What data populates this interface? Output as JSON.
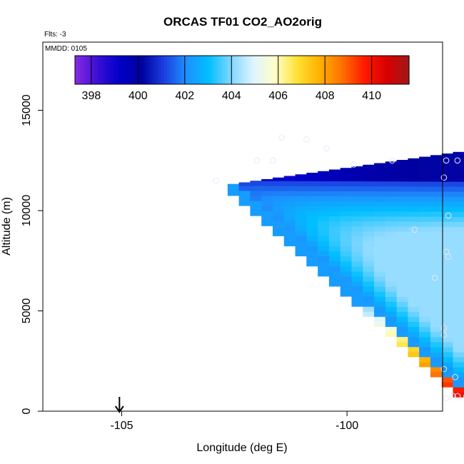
{
  "chart_data": {
    "type": "heatmap",
    "title": "ORCAS TF01 CO2_AO2orig",
    "flights_label": "Flts: -3",
    "date_label": "MMDD: 0105",
    "xlabel": "Longitude (deg E)",
    "ylabel": "Altitude (m)",
    "xlim": [
      -106.75,
      -97.88
    ],
    "ylim": [
      0,
      18400
    ],
    "x_ticks": [
      -105,
      -100
    ],
    "x_tick_labels": [
      "-105",
      "-100"
    ],
    "y_ticks": [
      0,
      5000,
      10000,
      15000
    ],
    "y_tick_labels": [
      "0",
      "5000",
      "10000",
      "15000"
    ],
    "colorbar": {
      "min": 397.3,
      "max": 411.6,
      "ticks": [
        398,
        400,
        402,
        404,
        406,
        408,
        410
      ],
      "tick_labels": [
        "398",
        "400",
        "402",
        "404",
        "406",
        "408",
        "410"
      ],
      "colors": [
        "#8a2be2",
        "#3b0fd6",
        "#0000c8",
        "#0000a0",
        "#1b3fe0",
        "#1e90ff",
        "#00bfff",
        "#7fd6ff",
        "#dff4ff",
        "#ffffc8",
        "#ffe033",
        "#ffb000",
        "#ff7000",
        "#ff1a00",
        "#d80000",
        "#a01818"
      ]
    },
    "field_cells": {
      "x_step": 0.25,
      "z_step": 250,
      "vertices": [
        [
          -102.9,
          11250
        ],
        [
          -98.2,
          12750
        ],
        [
          -97.6,
          600
        ]
      ],
      "lower_edge": [
        [
          -100.0,
          5000
        ],
        [
          -97.6,
          600
        ]
      ],
      "top_values": [
        [
          -102.9,
          400.4
        ],
        [
          -101.5,
          399.0
        ],
        [
          -100.0,
          399.8
        ],
        [
          -98.5,
          400.2
        ]
      ],
      "core_value": 404.2,
      "surface_max": 411.0
    },
    "sample_points": [
      [
        -101.45,
        13650
      ],
      [
        -100.9,
        13550
      ],
      [
        -100.45,
        13100
      ],
      [
        -102.0,
        12500
      ],
      [
        -101.65,
        12500
      ],
      [
        -99.0,
        12500
      ],
      [
        -97.8,
        12500
      ],
      [
        -97.55,
        12500
      ],
      [
        -99.85,
        12300
      ],
      [
        -102.9,
        11500
      ],
      [
        -97.85,
        11650
      ],
      [
        -97.75,
        9750
      ],
      [
        -98.5,
        9050
      ],
      [
        -97.8,
        7950
      ],
      [
        -97.75,
        7700
      ],
      [
        -98.05,
        6650
      ],
      [
        -97.85,
        4150
      ],
      [
        -97.85,
        3800
      ],
      [
        -97.85,
        2100
      ],
      [
        -97.6,
        1700
      ],
      [
        -97.8,
        650
      ],
      [
        -97.65,
        750
      ],
      [
        -97.55,
        750
      ],
      [
        -97.35,
        750
      ]
    ],
    "arrow_marker": {
      "x": -105.05,
      "label": ""
    }
  }
}
